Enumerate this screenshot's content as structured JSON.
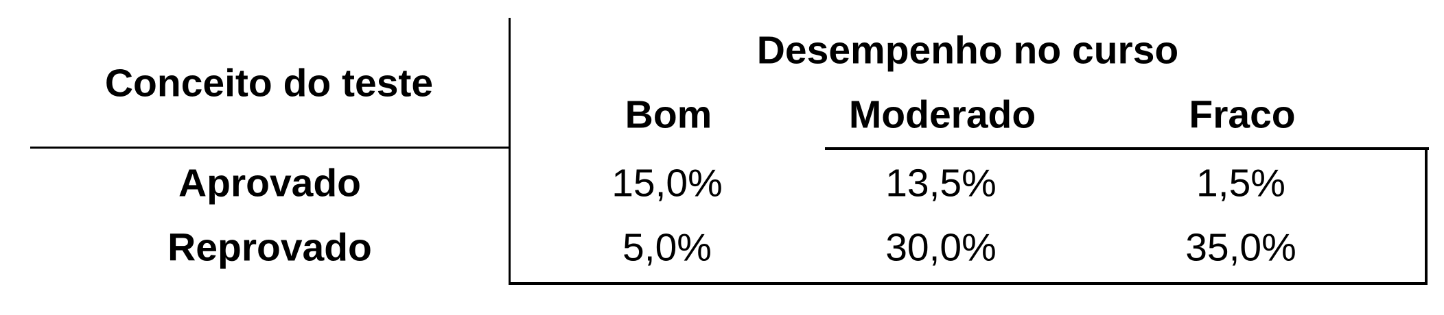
{
  "table": {
    "row_header_title": "Conceito do teste",
    "column_group_title": "Desempenho no curso",
    "columns": [
      "Bom",
      "Moderado",
      "Fraco"
    ],
    "rows": [
      {
        "label": "Aprovado",
        "values": [
          "15,0%",
          "13,5%",
          "1,5%"
        ]
      },
      {
        "label": "Reprovado",
        "values": [
          "5,0%",
          "30,0%",
          "35,0%"
        ]
      }
    ]
  }
}
